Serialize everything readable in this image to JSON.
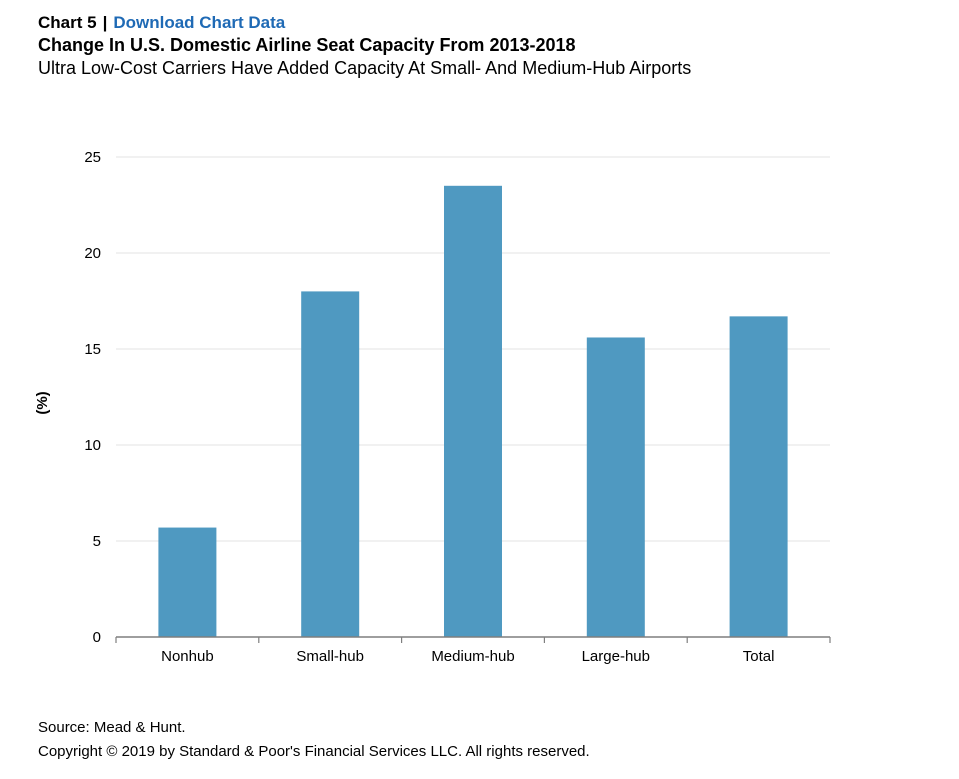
{
  "header": {
    "chart_number": "Chart 5",
    "separator": "|",
    "download_link": "Download Chart Data",
    "title": "Change In U.S. Domestic Airline Seat Capacity From 2013-2018",
    "subtitle": "Ultra Low-Cost Carriers Have Added Capacity At Small- And Medium-Hub Airports"
  },
  "footer": {
    "source": "Source: Mead & Hunt.",
    "copyright": "Copyright © 2019 by Standard & Poor's Financial Services LLC. All rights reserved."
  },
  "colors": {
    "bar": "#4f99c1",
    "grid": "#e3e3e3",
    "axis": "#7f7f7f",
    "link": "#1f6ab5"
  },
  "chart_data": {
    "type": "bar",
    "categories": [
      "Nonhub",
      "Small-hub",
      "Medium-hub",
      "Large-hub",
      "Total"
    ],
    "values": [
      5.7,
      18.0,
      23.5,
      15.6,
      16.7
    ],
    "ylabel": "(%)",
    "ylim": [
      0,
      25
    ],
    "yticks": [
      0,
      5,
      10,
      15,
      20,
      25
    ],
    "grid": true,
    "legend": "none"
  }
}
